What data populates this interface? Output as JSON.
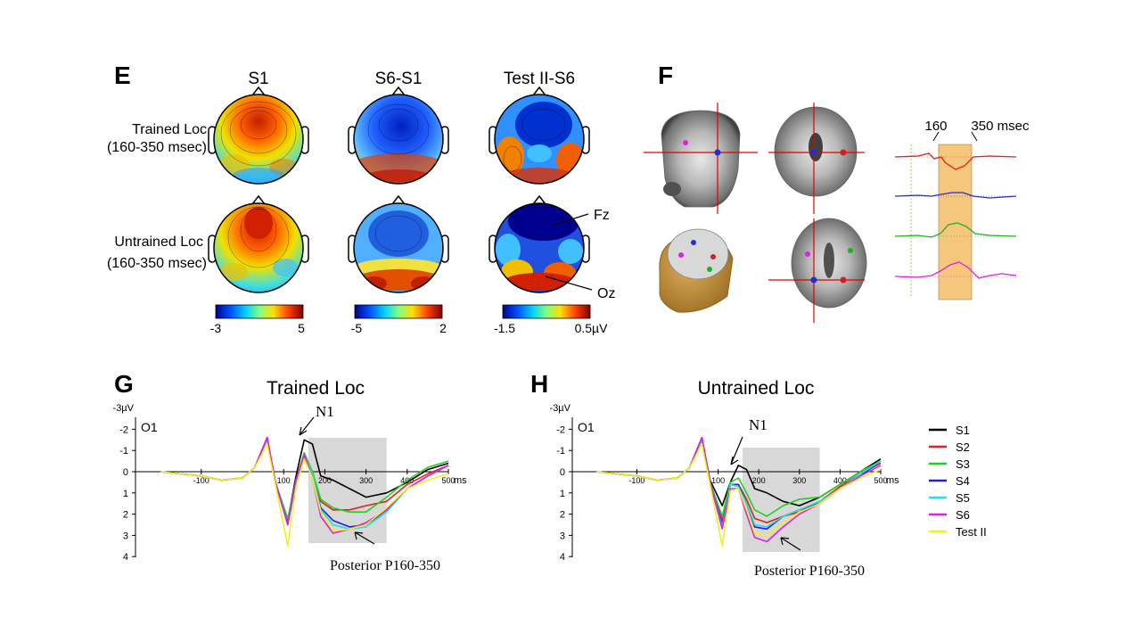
{
  "panel_e": {
    "letter": "E",
    "column_titles": [
      "S1",
      "S6-S1",
      "Test II-S6"
    ],
    "row_labels": [
      {
        "line1": "Trained Loc",
        "line2": "(160-350 msec)"
      },
      {
        "line1": "Untrained Loc",
        "line2": "(160-350 msec)"
      }
    ],
    "colorbars": [
      {
        "min": "-3",
        "max": "5"
      },
      {
        "min": "-5",
        "max": "2"
      },
      {
        "min": "-1.5",
        "max": "0.5µV"
      }
    ],
    "electrode_labels": {
      "fz": "Fz",
      "oz": "Oz"
    },
    "colormap": [
      "#00008f",
      "#0050ff",
      "#00d0ff",
      "#80ff80",
      "#ffe000",
      "#ff4000",
      "#800000"
    ]
  },
  "panel_f": {
    "letter": "F",
    "time_labels": {
      "start": "160",
      "end": "350 msec"
    },
    "trace_colors": [
      "#e0201a",
      "#2030d0",
      "#20b020",
      "#e020e0"
    ]
  },
  "chart_data": [
    {
      "type": "line",
      "panel": "G",
      "title": "Trained Loc",
      "channel": "O1",
      "xlabel": "ms",
      "ylabel": "-3µV",
      "xlim": [
        -200,
        500
      ],
      "ylim": [
        -3,
        4
      ],
      "y_inverted": true,
      "x_ticks": [
        "-100",
        "100",
        "200",
        "300",
        "400",
        "500"
      ],
      "y_ticks": [
        "-2",
        "-1",
        "0",
        "1",
        "2",
        "3",
        "4"
      ],
      "shaded_window": [
        160,
        350
      ],
      "annotations": {
        "peak": "N1",
        "component": "Posterior P160-350"
      },
      "x": [
        -200,
        -150,
        -100,
        -50,
        0,
        30,
        60,
        80,
        110,
        130,
        150,
        170,
        190,
        220,
        260,
        300,
        350,
        400,
        450,
        500
      ],
      "series": [
        {
          "name": "S1",
          "color": "#000000",
          "values": [
            0,
            0.1,
            0.2,
            0.4,
            0.3,
            -0.2,
            -1.6,
            0.5,
            2.3,
            0.2,
            -1.5,
            -1.3,
            0.2,
            0.4,
            0.8,
            1.2,
            1.0,
            0.5,
            -0.1,
            -0.4
          ]
        },
        {
          "name": "S2",
          "color": "#e02020",
          "values": [
            0,
            0.1,
            0.2,
            0.4,
            0.3,
            -0.2,
            -1.6,
            0.5,
            2.4,
            0.4,
            -0.7,
            0.0,
            1.4,
            1.8,
            1.8,
            1.6,
            1.4,
            0.6,
            0.1,
            -0.3
          ]
        },
        {
          "name": "S3",
          "color": "#20d020",
          "values": [
            0,
            0.1,
            0.2,
            0.4,
            0.3,
            -0.2,
            -1.5,
            0.5,
            2.2,
            0.4,
            -0.9,
            0.0,
            1.3,
            1.7,
            1.9,
            1.9,
            1.2,
            0.4,
            -0.2,
            -0.5
          ]
        },
        {
          "name": "S4",
          "color": "#2020e0",
          "values": [
            0,
            0.1,
            0.2,
            0.4,
            0.3,
            -0.2,
            -1.6,
            0.5,
            2.5,
            0.5,
            -0.7,
            0.2,
            1.7,
            2.3,
            2.6,
            2.5,
            1.8,
            0.8,
            0.2,
            -0.3
          ]
        },
        {
          "name": "S5",
          "color": "#20e0e0",
          "values": [
            0,
            0.1,
            0.2,
            0.4,
            0.3,
            -0.2,
            -1.5,
            0.5,
            2.5,
            0.5,
            -0.8,
            0.1,
            1.8,
            2.5,
            2.7,
            2.6,
            1.9,
            0.8,
            0.2,
            -0.3
          ]
        },
        {
          "name": "S6",
          "color": "#e020e0",
          "values": [
            0,
            0.1,
            0.2,
            0.4,
            0.3,
            -0.2,
            -1.6,
            0.5,
            2.5,
            0.4,
            -0.8,
            0.3,
            2.1,
            2.9,
            2.7,
            2.4,
            1.8,
            0.8,
            0.2,
            -0.3
          ]
        },
        {
          "name": "Test II",
          "color": "#f0f020",
          "values": [
            0,
            0.1,
            0.2,
            0.4,
            0.3,
            -0.2,
            -1.3,
            0.6,
            3.5,
            0.7,
            -0.6,
            0.3,
            1.9,
            2.8,
            2.7,
            2.5,
            1.7,
            0.8,
            0.4,
            0.1
          ]
        }
      ]
    },
    {
      "type": "line",
      "panel": "H",
      "title": "Untrained Loc",
      "channel": "O1",
      "xlabel": "ms",
      "ylabel": "-3µV",
      "xlim": [
        -200,
        500
      ],
      "ylim": [
        -3,
        4
      ],
      "y_inverted": true,
      "x_ticks": [
        "-100",
        "100",
        "200",
        "300",
        "400",
        "500"
      ],
      "y_ticks": [
        "-2",
        "-1",
        "0",
        "1",
        "2",
        "3",
        "4"
      ],
      "shaded_window": [
        160,
        350
      ],
      "annotations": {
        "peak": "N1",
        "component": "Posterior P160-350"
      },
      "x": [
        -200,
        -150,
        -100,
        -50,
        0,
        30,
        60,
        80,
        110,
        130,
        150,
        170,
        190,
        220,
        260,
        300,
        350,
        400,
        450,
        500
      ],
      "series": [
        {
          "name": "S1",
          "color": "#000000",
          "values": [
            0,
            0.1,
            0.2,
            0.4,
            0.3,
            -0.2,
            -1.6,
            0.4,
            1.6,
            0.5,
            -0.3,
            -0.1,
            0.8,
            1.0,
            1.4,
            1.6,
            1.2,
            0.6,
            0.0,
            -0.6
          ]
        },
        {
          "name": "S2",
          "color": "#e02020",
          "values": [
            0,
            0.1,
            0.2,
            0.4,
            0.3,
            -0.2,
            -1.6,
            0.5,
            2.3,
            0.6,
            0.6,
            1.3,
            2.2,
            2.4,
            2.1,
            1.9,
            1.4,
            0.7,
            0.1,
            -0.4
          ]
        },
        {
          "name": "S3",
          "color": "#20d020",
          "values": [
            0,
            0.1,
            0.2,
            0.4,
            0.3,
            -0.2,
            -1.5,
            0.5,
            2.1,
            0.5,
            0.3,
            1.0,
            1.8,
            2.1,
            1.6,
            1.3,
            1.2,
            0.6,
            0.0,
            -0.5
          ]
        },
        {
          "name": "S4",
          "color": "#2020e0",
          "values": [
            0,
            0.1,
            0.2,
            0.4,
            0.3,
            -0.2,
            -1.6,
            0.5,
            2.5,
            0.6,
            0.6,
            1.5,
            2.6,
            2.7,
            2.1,
            1.8,
            1.5,
            0.8,
            0.2,
            -0.5
          ]
        },
        {
          "name": "S5",
          "color": "#20e0e0",
          "values": [
            0,
            0.1,
            0.2,
            0.4,
            0.3,
            -0.2,
            -1.5,
            0.5,
            2.6,
            0.6,
            0.7,
            1.5,
            2.5,
            2.6,
            2.1,
            1.8,
            1.4,
            0.8,
            0.1,
            -0.5
          ]
        },
        {
          "name": "S6",
          "color": "#e020e0",
          "values": [
            0,
            0.1,
            0.2,
            0.4,
            0.3,
            -0.2,
            -1.6,
            0.5,
            2.7,
            0.8,
            0.8,
            2.0,
            3.1,
            3.3,
            2.6,
            2.0,
            1.5,
            0.8,
            0.2,
            -0.3
          ]
        },
        {
          "name": "Test II",
          "color": "#f0f020",
          "values": [
            0,
            0.1,
            0.2,
            0.4,
            0.3,
            -0.2,
            -1.3,
            0.6,
            3.5,
            0.9,
            0.8,
            1.8,
            2.9,
            3.0,
            2.4,
            1.9,
            1.5,
            0.8,
            0.3,
            -0.1
          ]
        }
      ]
    }
  ]
}
